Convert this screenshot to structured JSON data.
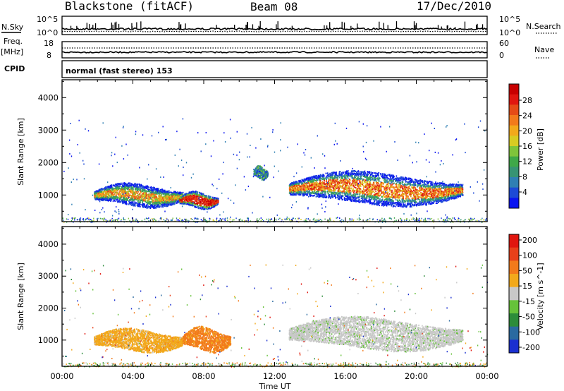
{
  "header": {
    "station": "Blackstone (fitACF)",
    "beam": "Beam 08",
    "date": "17/Dec/2010"
  },
  "top_panels": {
    "nsky_label": "N.Sky",
    "nsky_ticks": [
      "10^5",
      "10^0"
    ],
    "nsearch_label": "N.Search",
    "nsearch_ticks": [
      "10^5",
      "10^0"
    ],
    "freq_label_line1": "Freq.",
    "freq_label_line2": "[MHz]",
    "freq_ticks": [
      "18",
      "8"
    ],
    "nave_label": "Nave",
    "nave_ticks": [
      "60",
      "0"
    ],
    "cpid_label": "CPID",
    "cpid_text": "normal (fast stereo) 153"
  },
  "chart_data": [
    {
      "type": "heatmap",
      "name": "power",
      "xlabel": "",
      "ylabel": "Slant Range [km]",
      "x_ticks": [
        "00:00",
        "04:00",
        "08:00",
        "12:00",
        "16:00",
        "20:00",
        "00:00"
      ],
      "xlim_hours": [
        0,
        24
      ],
      "y_ticks": [
        1000,
        2000,
        3000,
        4000
      ],
      "ylim": [
        180,
        4550
      ],
      "colorbar": {
        "label": "Power [dB]",
        "ticks": [
          "28",
          "24",
          "20",
          "16",
          "12",
          "8",
          "4"
        ],
        "range": [
          0,
          30
        ],
        "colors": [
          "#0a14f0",
          "#1d4ad6",
          "#2f7fb3",
          "#379473",
          "#3fa848",
          "#7fc43a",
          "#d8cb22",
          "#f2a91b",
          "#f27a1b",
          "#e54b16",
          "#e0160f",
          "#c80000"
        ]
      },
      "regions": [
        {
          "t": [
            1.8,
            6.8
          ],
          "r": [
            650,
            1350
          ],
          "level": "green-edge"
        },
        {
          "t": [
            6.6,
            8.8
          ],
          "r": [
            600,
            1100
          ],
          "level": "red-core"
        },
        {
          "t": [
            10.8,
            11.6
          ],
          "r": [
            1500,
            1900
          ],
          "level": "mixed"
        },
        {
          "t": [
            12.8,
            22.6
          ],
          "r": [
            700,
            1700
          ],
          "level": "orange-core"
        }
      ]
    },
    {
      "type": "heatmap",
      "name": "velocity",
      "xlabel": "Time UT",
      "ylabel": "Slant Range [km]",
      "x_ticks": [
        "00:00",
        "04:00",
        "08:00",
        "12:00",
        "16:00",
        "20:00",
        "00:00"
      ],
      "xlim_hours": [
        0,
        24
      ],
      "y_ticks": [
        1000,
        2000,
        3000,
        4000
      ],
      "ylim": [
        180,
        4550
      ],
      "colorbar": {
        "label": "Velocity [m s^-1]",
        "ticks": [
          "200",
          "100",
          "50",
          "15",
          "-15",
          "-50",
          "-100",
          "-200"
        ],
        "colors": [
          "#1a2fd0",
          "#2a6aa0",
          "#2c8c3a",
          "#66c23a",
          "#c8c8c8",
          "#f2a91b",
          "#f27a1b",
          "#e8401a",
          "#e0160f"
        ]
      },
      "regions": [
        {
          "t": [
            1.8,
            6.8
          ],
          "r": [
            650,
            1350
          ],
          "level": "orange"
        },
        {
          "t": [
            6.8,
            9.5
          ],
          "r": [
            650,
            1400
          ],
          "level": "dark-orange"
        },
        {
          "t": [
            12.8,
            22.6
          ],
          "r": [
            700,
            1700
          ],
          "level": "grey"
        }
      ]
    }
  ]
}
